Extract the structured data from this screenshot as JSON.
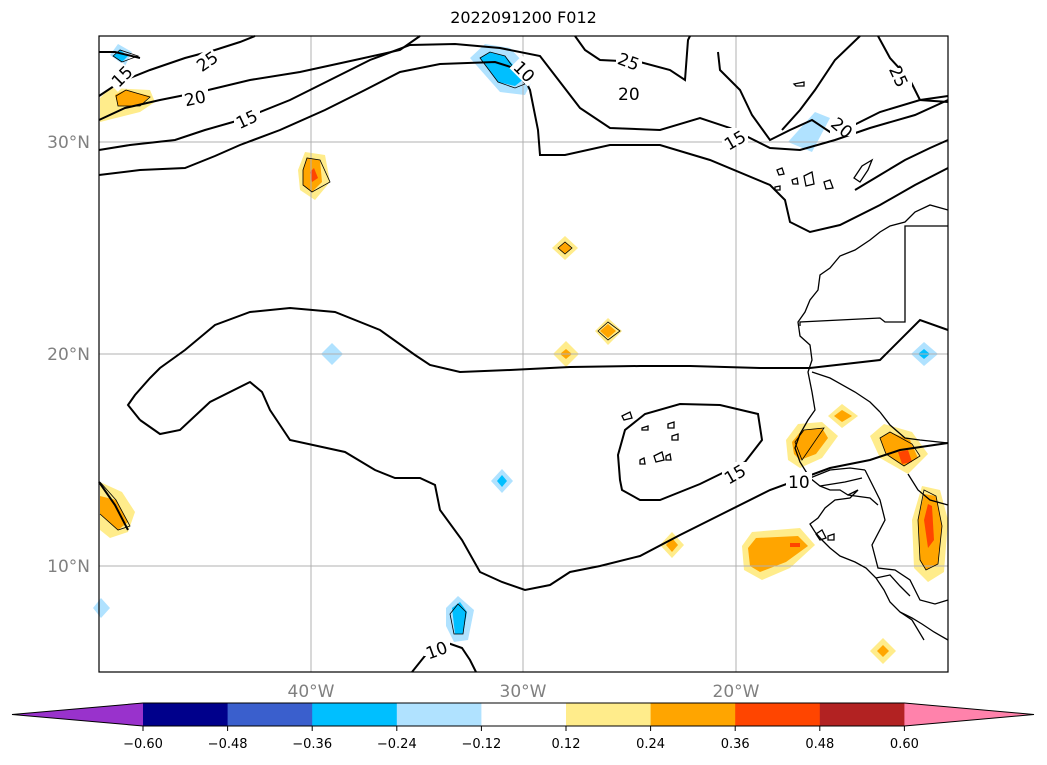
{
  "title": "2022091200 F012",
  "map": {
    "lat_ticks": [
      {
        "value": 30,
        "label": "30°N"
      },
      {
        "value": 20,
        "label": "20°N"
      },
      {
        "value": 10,
        "label": "10°N"
      }
    ],
    "lon_ticks": [
      {
        "value": -40,
        "label": "40°W"
      },
      {
        "value": -30,
        "label": "30°W"
      },
      {
        "value": -20,
        "label": "20°W"
      }
    ],
    "extent": {
      "lon_min": -50,
      "lon_max": -10,
      "lat_min": 5,
      "lat_max": 35
    },
    "grid": true,
    "contour_levels": [
      "10",
      "15",
      "20",
      "25"
    ]
  },
  "colorbar": {
    "tick_labels": [
      "−0.60",
      "−0.48",
      "−0.36",
      "−0.24",
      "−0.12",
      "0.12",
      "0.24",
      "0.36",
      "0.48",
      "0.60"
    ],
    "colors": [
      "#9932cc",
      "#00008b",
      "#3a5fcd",
      "#00bfff",
      "#b0e2ff",
      "#ffffff",
      "#ffec8b",
      "#ffa500",
      "#ff4500",
      "#b22222",
      "#ff82ab"
    ],
    "extend": "both"
  },
  "fill_colors": {
    "neg_light": "#b0e2ff",
    "neg_mid": "#00bfff",
    "pos_light": "#ffec8b",
    "pos_mid": "#ffa500",
    "pos_strong": "#ff4500"
  }
}
